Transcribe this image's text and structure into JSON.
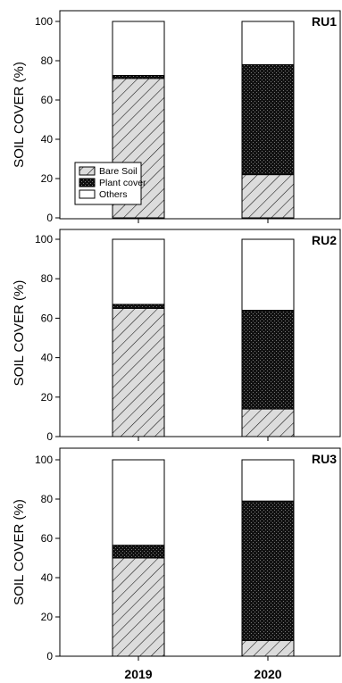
{
  "chart_data": [
    {
      "type": "bar",
      "stacked": true,
      "panel_label": "RU1",
      "ylabel": "SOIL COVER (%)",
      "ylim": [
        0,
        100
      ],
      "yticks": [
        0,
        20,
        40,
        60,
        80,
        100
      ],
      "categories": [
        "2019",
        "2020"
      ],
      "series": [
        {
          "name": "Bare Soil",
          "values": [
            71,
            22
          ],
          "pattern": "diagonal-hatch"
        },
        {
          "name": "Plant cover",
          "values": [
            1.5,
            56
          ],
          "pattern": "dense-crosshatch"
        },
        {
          "name": "Others",
          "values": [
            27.5,
            22
          ],
          "pattern": "white"
        }
      ],
      "legend": {
        "position": "bottom-left"
      }
    },
    {
      "type": "bar",
      "stacked": true,
      "panel_label": "RU2",
      "ylabel": "SOIL COVER (%)",
      "ylim": [
        0,
        100
      ],
      "yticks": [
        0,
        20,
        40,
        60,
        80,
        100
      ],
      "categories": [
        "2019",
        "2020"
      ],
      "series": [
        {
          "name": "Bare Soil",
          "values": [
            65,
            14
          ],
          "pattern": "diagonal-hatch"
        },
        {
          "name": "Plant cover",
          "values": [
            2,
            50
          ],
          "pattern": "dense-crosshatch"
        },
        {
          "name": "Others",
          "values": [
            33,
            36
          ],
          "pattern": "white"
        }
      ]
    },
    {
      "type": "bar",
      "stacked": true,
      "panel_label": "RU3",
      "ylabel": "SOIL COVER (%)",
      "ylim": [
        0,
        100
      ],
      "yticks": [
        0,
        20,
        40,
        60,
        80,
        100
      ],
      "categories": [
        "2019",
        "2020"
      ],
      "xtick_labels": [
        "2019",
        "2020"
      ],
      "series": [
        {
          "name": "Bare Soil",
          "values": [
            50,
            8
          ],
          "pattern": "diagonal-hatch"
        },
        {
          "name": "Plant cover",
          "values": [
            6.5,
            71
          ],
          "pattern": "dense-crosshatch"
        },
        {
          "name": "Others",
          "values": [
            43.5,
            21
          ],
          "pattern": "white"
        }
      ]
    }
  ],
  "colors": {
    "ink": "#000000",
    "background": "#ffffff",
    "bare_soil_fill": "#dcdcdc",
    "plant_cover_fill": "#1a1a1a"
  }
}
